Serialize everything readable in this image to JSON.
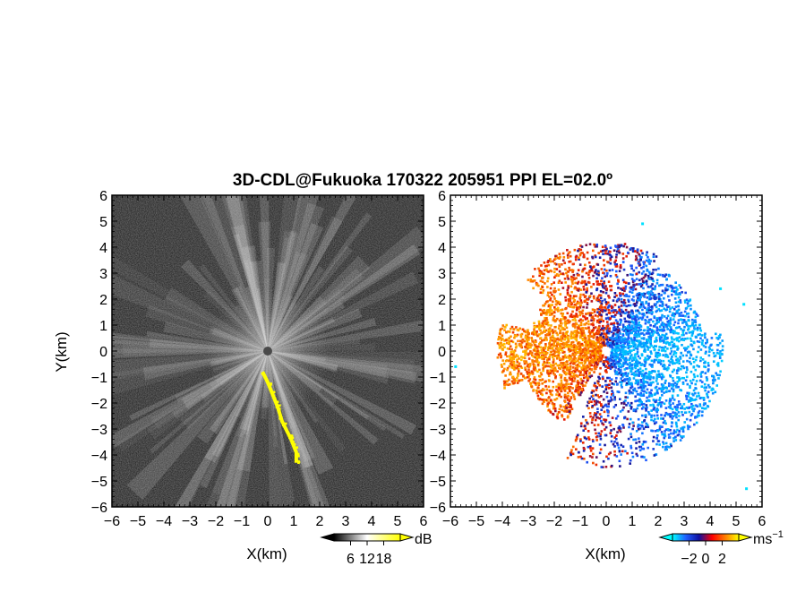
{
  "title": "3D-CDL@Fukuoka 170322 205951 PPI EL=02.0º",
  "chart_data": [
    {
      "type": "heatmap",
      "panel": "left",
      "quantity": "SNR",
      "xlabel": "X(km)",
      "ylabel": "Y(km)",
      "xlim": [
        -6,
        6
      ],
      "ylim": [
        -6,
        6
      ],
      "xticks": [
        "−6",
        "−5",
        "−4",
        "−3",
        "−2",
        "−1",
        "0",
        "1",
        "2",
        "3",
        "4",
        "5",
        "6"
      ],
      "yticks": [
        "6",
        "5",
        "4",
        "3",
        "2",
        "1",
        "0",
        "−1",
        "−2",
        "−3",
        "−4",
        "−5",
        "−6"
      ],
      "colorbar": {
        "unit": "dB",
        "ticks": [
          "6",
          "12",
          "18"
        ],
        "tick_values": [
          6,
          12,
          18
        ],
        "range": [
          0,
          24
        ],
        "colors": [
          "#000000",
          "#ffffff",
          "#ffff00"
        ]
      },
      "highlight_path_km": [
        [
          -0.2,
          -0.8
        ],
        [
          0,
          -1.2
        ],
        [
          0.2,
          -1.7
        ],
        [
          0.4,
          -2.2
        ],
        [
          0.55,
          -2.7
        ],
        [
          0.7,
          -3.0
        ],
        [
          0.9,
          -3.4
        ],
        [
          1.1,
          -3.9
        ],
        [
          1.1,
          -4.3
        ]
      ]
    },
    {
      "type": "heatmap",
      "panel": "right",
      "quantity": "radial velocity",
      "xlabel": "X(km)",
      "xlim": [
        -6,
        6
      ],
      "ylim": [
        -6,
        6
      ],
      "xticks": [
        "−6",
        "−5",
        "−4",
        "−3",
        "−2",
        "−1",
        "0",
        "1",
        "2",
        "3",
        "4",
        "5",
        "6"
      ],
      "yticks": [
        "6",
        "5",
        "4",
        "3",
        "2",
        "1",
        "0",
        "−1",
        "−2",
        "−3",
        "−4",
        "−5",
        "−6"
      ],
      "colorbar": {
        "unit": "ms",
        "unit_exp": "−1",
        "ticks": [
          "−2",
          "0",
          "2"
        ],
        "tick_values": [
          -2,
          0,
          2
        ],
        "range": [
          -4,
          4
        ],
        "colors": [
          "#00ffff",
          "#2060ff",
          "#1010a0",
          "#ff0000",
          "#ff8000",
          "#ffff00"
        ]
      },
      "isolated_points_km": [
        [
          -5.8,
          -0.6
        ],
        [
          1.4,
          4.9
        ],
        [
          5.4,
          -5.3
        ],
        [
          5.3,
          1.8
        ],
        [
          4.4,
          2.4
        ]
      ]
    }
  ]
}
